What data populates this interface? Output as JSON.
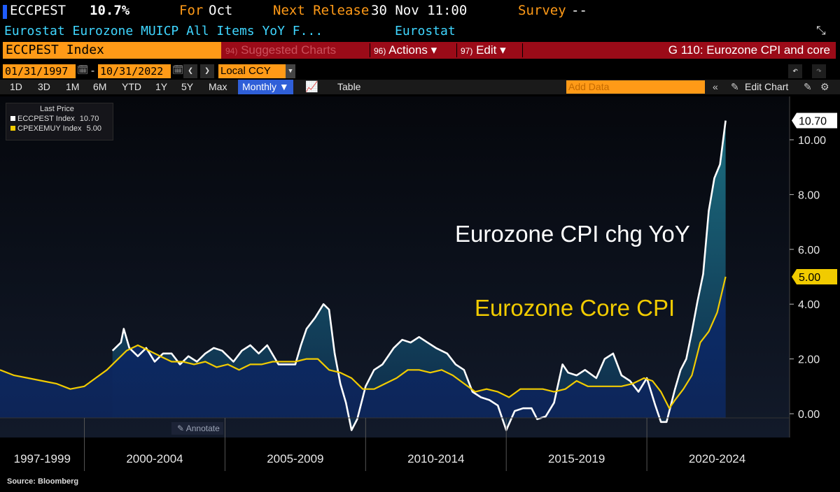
{
  "header": {
    "ticker": "ECCPEST",
    "value": "10.7%",
    "for_label": "For",
    "for_value": "Oct",
    "next_release_label": "Next Release",
    "next_release_value": "30 Nov 11:00",
    "survey_label": "Survey",
    "survey_value": "--",
    "description": "Eurostat Eurozone MUICP All Items YoY F...",
    "source_name": "Eurostat"
  },
  "command_bar": {
    "index_name": "ECCPEST Index",
    "suggested_num": "94)",
    "suggested_label": "Suggested Charts",
    "actions_num": "96)",
    "actions_label": "Actions ▾",
    "edit_num": "97)",
    "edit_label": "Edit ▾",
    "chart_title": "G 110: Eurozone CPI and core"
  },
  "date_controls": {
    "start_date": "01/31/1997",
    "dash": "-",
    "end_date": "10/31/2022",
    "currency": "Local CCY"
  },
  "period_bar": {
    "periods": [
      "1D",
      "3D",
      "1M",
      "6M",
      "YTD",
      "1Y",
      "5Y",
      "Max"
    ],
    "frequency": "Monthly ▼",
    "table_label": "Table",
    "add_data_placeholder": "Add Data",
    "edit_chart_label": "Edit Chart"
  },
  "legend": {
    "title": "Last Price",
    "items": [
      {
        "name": "ECCPEST Index",
        "value": "10.70",
        "color": "#ffffff"
      },
      {
        "name": "CPEXEMUY Index",
        "value": "5.00",
        "color": "#f1cb00"
      }
    ]
  },
  "annotate_label": "Annotate",
  "source_text": "Source: Bloomberg",
  "chart_data": {
    "type": "line",
    "title": "",
    "xlabel": "",
    "ylabel": "",
    "ylim": [
      -0.6,
      11.2
    ],
    "xlim": [
      1997.0,
      2025.0
    ],
    "y_ticks": [
      "0.00",
      "2.00",
      "4.00",
      "6.00",
      "8.00",
      "10.00"
    ],
    "x_period_labels": [
      "1997-1999",
      "2000-2004",
      "2005-2009",
      "2010-2014",
      "2015-2019",
      "2020-2024"
    ],
    "annotations": [
      {
        "text": "Eurozone CPI chg YoY",
        "color": "#ffffff"
      },
      {
        "text": "Eurozone Core CPI",
        "color": "#f1cb00"
      }
    ],
    "last_value_labels": [
      {
        "text": "10.70",
        "series": "ECCPEST Index"
      },
      {
        "text": "5.00",
        "series": "CPEXEMUY Index"
      }
    ],
    "grid": false,
    "legend_position": "top-left",
    "series": [
      {
        "name": "ECCPEST Index",
        "color": "#ffffff",
        "x": [
          2001.0,
          2001.3,
          2001.4,
          2001.6,
          2001.9,
          2002.2,
          2002.5,
          2002.8,
          2003.1,
          2003.4,
          2003.7,
          2004.0,
          2004.3,
          2004.6,
          2004.9,
          2005.3,
          2005.6,
          2005.9,
          2006.2,
          2006.5,
          2006.9,
          2007.2,
          2007.5,
          2007.7,
          2007.9,
          2008.2,
          2008.5,
          2008.7,
          2008.9,
          2009.1,
          2009.3,
          2009.5,
          2009.7,
          2010.0,
          2010.3,
          2010.6,
          2011.0,
          2011.3,
          2011.6,
          2011.9,
          2012.2,
          2012.5,
          2012.9,
          2013.2,
          2013.5,
          2013.8,
          2014.1,
          2014.4,
          2014.7,
          2015.0,
          2015.3,
          2015.6,
          2015.9,
          2016.1,
          2016.4,
          2016.7,
          2017.0,
          2017.2,
          2017.5,
          2017.8,
          2018.2,
          2018.5,
          2018.8,
          2019.1,
          2019.4,
          2019.7,
          2020.0,
          2020.3,
          2020.5,
          2020.7,
          2021.0,
          2021.2,
          2021.4,
          2021.6,
          2021.8,
          2022.0,
          2022.2,
          2022.4,
          2022.6,
          2022.8
        ],
        "y": [
          2.3,
          2.6,
          3.1,
          2.4,
          2.1,
          2.4,
          1.9,
          2.2,
          2.2,
          1.8,
          2.1,
          1.9,
          2.2,
          2.4,
          2.3,
          1.9,
          2.3,
          2.5,
          2.2,
          2.5,
          1.8,
          1.8,
          1.8,
          2.5,
          3.1,
          3.5,
          4.0,
          3.8,
          2.2,
          1.1,
          0.4,
          -0.6,
          -0.2,
          1.0,
          1.6,
          1.8,
          2.4,
          2.7,
          2.6,
          2.8,
          2.6,
          2.4,
          2.2,
          1.8,
          1.6,
          0.8,
          0.6,
          0.5,
          0.3,
          -0.6,
          0.1,
          0.2,
          0.2,
          -0.2,
          -0.1,
          0.4,
          1.8,
          1.5,
          1.4,
          1.6,
          1.3,
          2.0,
          2.2,
          1.4,
          1.2,
          0.8,
          1.3,
          0.3,
          -0.3,
          -0.3,
          0.9,
          1.6,
          2.0,
          3.0,
          4.1,
          5.1,
          7.4,
          8.6,
          9.1,
          10.7
        ]
      },
      {
        "name": "CPEXEMUY Index",
        "color": "#f1cb00",
        "x": [
          1997.0,
          1997.5,
          1998.0,
          1998.5,
          1999.0,
          1999.5,
          2000.0,
          2000.4,
          2000.8,
          2001.2,
          2001.5,
          2001.9,
          2002.3,
          2002.7,
          2003.1,
          2003.5,
          2003.9,
          2004.3,
          2004.7,
          2005.1,
          2005.5,
          2005.9,
          2006.3,
          2006.7,
          2007.1,
          2007.5,
          2007.9,
          2008.3,
          2008.7,
          2009.1,
          2009.5,
          2009.9,
          2010.3,
          2010.7,
          2011.1,
          2011.5,
          2011.9,
          2012.3,
          2012.7,
          2013.1,
          2013.5,
          2013.9,
          2014.3,
          2014.7,
          2015.1,
          2015.5,
          2015.9,
          2016.3,
          2016.7,
          2017.1,
          2017.5,
          2017.9,
          2018.3,
          2018.7,
          2019.1,
          2019.5,
          2019.9,
          2020.2,
          2020.5,
          2020.8,
          2021.0,
          2021.3,
          2021.6,
          2021.9,
          2022.2,
          2022.5,
          2022.8
        ],
        "y": [
          1.6,
          1.4,
          1.3,
          1.2,
          1.1,
          0.9,
          1.0,
          1.3,
          1.6,
          2.0,
          2.3,
          2.5,
          2.3,
          2.1,
          1.9,
          1.9,
          1.8,
          1.9,
          1.7,
          1.8,
          1.6,
          1.8,
          1.8,
          1.9,
          1.9,
          1.9,
          2.0,
          2.0,
          1.6,
          1.5,
          1.3,
          0.9,
          0.9,
          1.1,
          1.3,
          1.6,
          1.6,
          1.5,
          1.6,
          1.4,
          1.1,
          0.8,
          0.9,
          0.8,
          0.6,
          0.9,
          0.9,
          0.9,
          0.8,
          0.9,
          1.2,
          1.0,
          1.0,
          1.0,
          1.0,
          1.1,
          1.3,
          1.2,
          0.8,
          0.2,
          0.5,
          0.9,
          1.4,
          2.6,
          3.0,
          3.7,
          5.0
        ]
      }
    ]
  }
}
